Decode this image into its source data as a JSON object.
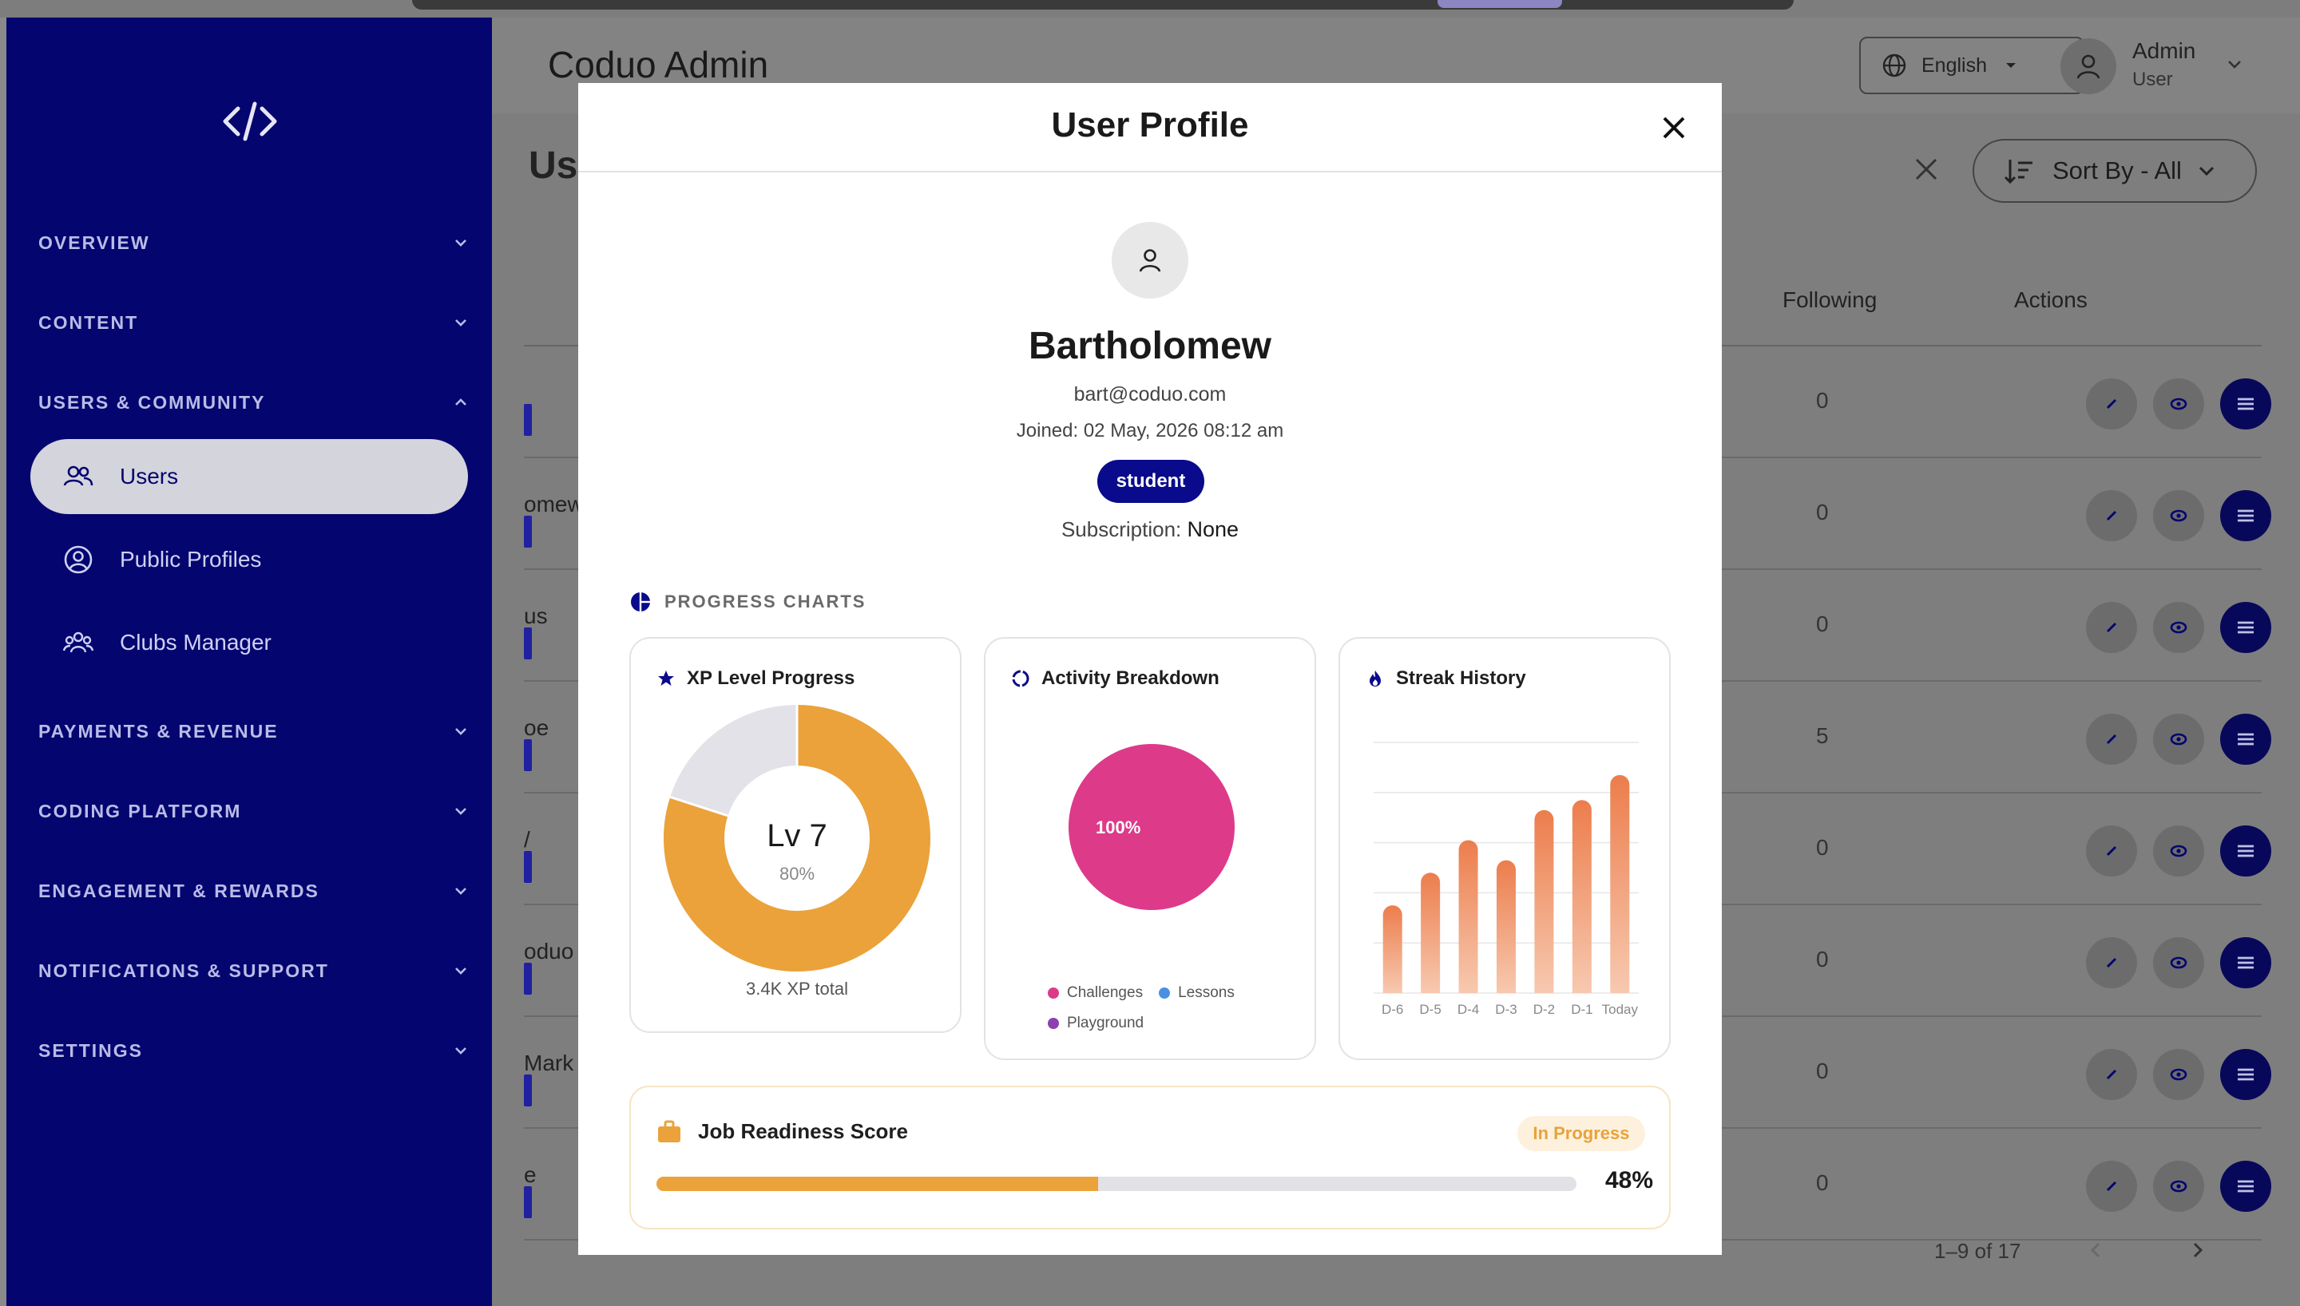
{
  "app": {
    "title": "Coduo Admin"
  },
  "header": {
    "language": "English",
    "user_name": "Admin",
    "user_role": "User"
  },
  "sidebar": {
    "sections": [
      {
        "label": "OVERVIEW",
        "expanded": false
      },
      {
        "label": "CONTENT",
        "expanded": false
      },
      {
        "label": "USERS & COMMUNITY",
        "expanded": true
      },
      {
        "label": "PAYMENTS & REVENUE",
        "expanded": false
      },
      {
        "label": "CODING PLATFORM",
        "expanded": false
      },
      {
        "label": "ENGAGEMENT & REWARDS",
        "expanded": false
      },
      {
        "label": "NOTIFICATIONS & SUPPORT",
        "expanded": false
      },
      {
        "label": "SETTINGS",
        "expanded": false
      }
    ],
    "items": [
      {
        "label": "Users",
        "icon": "users-icon",
        "active": true
      },
      {
        "label": "Public Profiles",
        "icon": "profile-circle-icon",
        "active": false
      },
      {
        "label": "Clubs Manager",
        "icon": "clubs-icon",
        "active": false
      }
    ]
  },
  "page": {
    "title": "Us",
    "sort_label": "Sort By - All",
    "columns": {
      "following": "Following",
      "actions": "Actions"
    },
    "rows": [
      {
        "name_fragment": "",
        "following": "0"
      },
      {
        "name_fragment": "omew",
        "following": "0"
      },
      {
        "name_fragment": "us",
        "following": "0"
      },
      {
        "name_fragment": "oe",
        "following": "5"
      },
      {
        "name_fragment": "/",
        "following": "0"
      },
      {
        "name_fragment": "oduo",
        "following": "0"
      },
      {
        "name_fragment": "Mark",
        "following": "0"
      },
      {
        "name_fragment": "e",
        "following": "0"
      }
    ],
    "pagination": "1–9 of 17"
  },
  "modal": {
    "title": "User Profile",
    "name": "Bartholomew",
    "email": "bart@coduo.com",
    "joined": "Joined: 02 May, 2026 08:12 am",
    "role": "student",
    "subscription_label": "Subscription:",
    "subscription_value": "None",
    "section_label": "PROGRESS CHARTS",
    "xp": {
      "title": "XP Level Progress",
      "level": "Lv 7",
      "percent_label": "80%",
      "percent": 80,
      "total": "3.4K XP total",
      "color": "#eba23a",
      "track_color": "#e2e2e8"
    },
    "activity": {
      "title": "Activity Breakdown"
    },
    "streak": {
      "title": "Streak History"
    },
    "job": {
      "title": "Job Readiness Score",
      "status": "In Progress",
      "percent_label": "48%",
      "percent": 48
    }
  },
  "chart_data": [
    {
      "type": "pie",
      "title": "Activity Breakdown",
      "slices": [
        {
          "name": "Challenges",
          "value": 100,
          "label": "100%",
          "color": "#dd3a8a"
        },
        {
          "name": "Lessons",
          "value": 0,
          "color": "#4a90e2"
        },
        {
          "name": "Playground",
          "value": 0,
          "color": "#8e3fb0"
        }
      ]
    },
    {
      "type": "bar",
      "title": "Streak History",
      "categories": [
        "D-6",
        "D-5",
        "D-4",
        "D-3",
        "D-2",
        "D-1",
        "Today"
      ],
      "values": [
        3.5,
        4.8,
        6.1,
        5.3,
        7.3,
        7.7,
        8.7
      ],
      "ylim": [
        0,
        10
      ],
      "grid": true,
      "color": "#ee8a5a"
    }
  ]
}
